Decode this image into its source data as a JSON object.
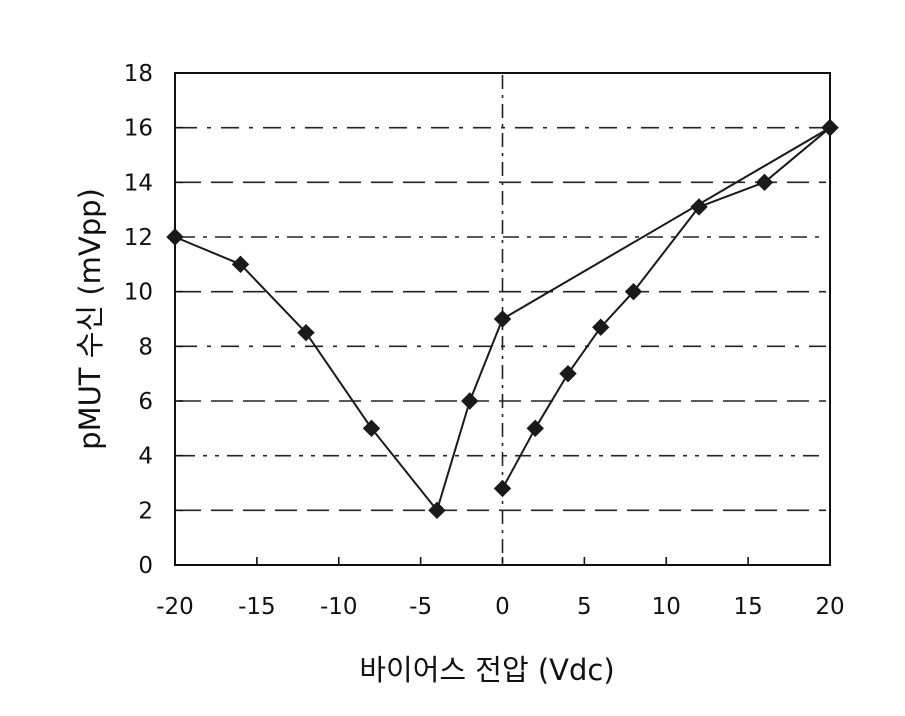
{
  "chart_data": {
    "type": "line",
    "title": "",
    "xlabel": "바이어스 전압 (Vdc)",
    "ylabel": "pMUT 수신 (mVpp)",
    "xlim": [
      -20,
      20
    ],
    "ylim": [
      0,
      18
    ],
    "x_ticks": [
      -20,
      -15,
      -10,
      -5,
      0,
      5,
      10,
      15,
      20
    ],
    "y_ticks": [
      0,
      2,
      4,
      6,
      8,
      10,
      12,
      14,
      16,
      18
    ],
    "x_tick_labels": [
      "-20",
      "-15",
      "-10",
      "-5",
      "0",
      "5",
      "10",
      "15",
      "20"
    ],
    "y_tick_labels": [
      "0",
      "2",
      "4",
      "6",
      "8",
      "10",
      "12",
      "14",
      "16",
      "18"
    ],
    "grid": "horizontal dashed lines at even y values, vertical dashed line at x = 0",
    "legend": "none",
    "colors": {
      "line": "#1a1a1a",
      "marker": "#1a1a1a",
      "grid": "#222222",
      "frame": "#111111"
    },
    "series": [
      {
        "x": [
          -20,
          -16,
          -12,
          -8,
          -4,
          -2,
          0,
          20
        ],
        "y": [
          12,
          11,
          8.5,
          5,
          2,
          6,
          9,
          16
        ],
        "markers": [
          true,
          true,
          true,
          true,
          true,
          true,
          true,
          true
        ]
      },
      {
        "x": [
          0,
          2,
          4,
          6,
          8,
          12,
          16,
          20
        ],
        "y": [
          2.8,
          5,
          7,
          8.7,
          10,
          13.1,
          14,
          16
        ],
        "markers": [
          true,
          true,
          true,
          true,
          true,
          true,
          true,
          true
        ]
      }
    ]
  }
}
